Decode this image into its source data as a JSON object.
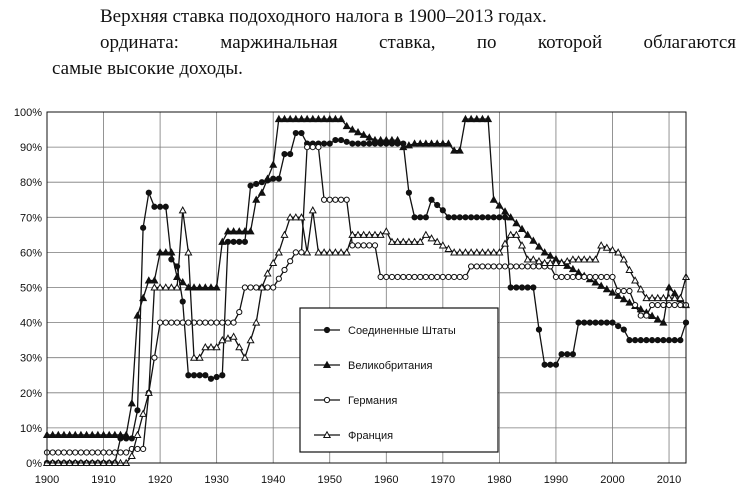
{
  "caption": {
    "line1": "Верхняя ставка подоходного налога в 1900–2013 годах.",
    "line2": "ордината: маржинальная ставка, по которой облагаются",
    "line3": "самые высокие доходы."
  },
  "colors": {
    "ink": "#111111",
    "grid": "#7a7a7a",
    "background": "#ffffff"
  },
  "chart_data": {
    "type": "line",
    "x_range": [
      1900,
      2013
    ],
    "ylim": [
      0,
      100
    ],
    "y_ticks": [
      "0%",
      "10%",
      "20%",
      "30%",
      "40%",
      "50%",
      "60%",
      "70%",
      "80%",
      "90%",
      "100%"
    ],
    "x_ticks": [
      "1900",
      "1910",
      "1920",
      "1930",
      "1940",
      "1950",
      "1960",
      "1970",
      "1980",
      "1990",
      "2000",
      "2010"
    ],
    "grid": true,
    "legend_position": "lower-center",
    "series": [
      {
        "name": "Соединенные Штаты",
        "marker": "filled-circle",
        "points": [
          [
            1900,
            0
          ],
          [
            1912,
            0
          ],
          [
            1913,
            7
          ],
          [
            1915,
            7
          ],
          [
            1916,
            15
          ],
          [
            1917,
            67
          ],
          [
            1918,
            77
          ],
          [
            1919,
            73
          ],
          [
            1921,
            73
          ],
          [
            1922,
            58
          ],
          [
            1923,
            56
          ],
          [
            1924,
            46
          ],
          [
            1925,
            25
          ],
          [
            1928,
            25
          ],
          [
            1929,
            24
          ],
          [
            1931,
            25
          ],
          [
            1932,
            63
          ],
          [
            1935,
            63
          ],
          [
            1936,
            79
          ],
          [
            1940,
            81
          ],
          [
            1941,
            81
          ],
          [
            1942,
            88
          ],
          [
            1943,
            88
          ],
          [
            1944,
            94
          ],
          [
            1945,
            94
          ],
          [
            1946,
            91
          ],
          [
            1950,
            91
          ],
          [
            1951,
            92
          ],
          [
            1952,
            92
          ],
          [
            1954,
            91
          ],
          [
            1963,
            91
          ],
          [
            1964,
            77
          ],
          [
            1965,
            70
          ],
          [
            1967,
            70
          ],
          [
            1968,
            75
          ],
          [
            1970,
            72
          ],
          [
            1971,
            70
          ],
          [
            1981,
            70
          ],
          [
            1982,
            50
          ],
          [
            1986,
            50
          ],
          [
            1987,
            38
          ],
          [
            1988,
            28
          ],
          [
            1990,
            28
          ],
          [
            1991,
            31
          ],
          [
            1993,
            31
          ],
          [
            1994,
            40
          ],
          [
            2000,
            40
          ],
          [
            2001,
            39
          ],
          [
            2002,
            38
          ],
          [
            2003,
            35
          ],
          [
            2012,
            35
          ],
          [
            2013,
            40
          ]
        ]
      },
      {
        "name": "Великобритания",
        "marker": "filled-triangle",
        "points": [
          [
            1900,
            8
          ],
          [
            1909,
            8
          ],
          [
            1910,
            8
          ],
          [
            1914,
            8
          ],
          [
            1915,
            17
          ],
          [
            1916,
            42
          ],
          [
            1918,
            52
          ],
          [
            1919,
            52
          ],
          [
            1920,
            60
          ],
          [
            1922,
            60
          ],
          [
            1923,
            53
          ],
          [
            1925,
            50
          ],
          [
            1930,
            50
          ],
          [
            1931,
            63
          ],
          [
            1932,
            66
          ],
          [
            1936,
            66
          ],
          [
            1937,
            75
          ],
          [
            1938,
            77
          ],
          [
            1940,
            85
          ],
          [
            1941,
            98
          ],
          [
            1946,
            98
          ],
          [
            1948,
            98
          ],
          [
            1952,
            98
          ],
          [
            1953,
            96
          ],
          [
            1954,
            95
          ],
          [
            1958,
            92
          ],
          [
            1962,
            92
          ],
          [
            1963,
            90
          ],
          [
            1965,
            91
          ],
          [
            1971,
            91
          ],
          [
            1972,
            89
          ],
          [
            1973,
            89
          ],
          [
            1974,
            98
          ],
          [
            1978,
            98
          ],
          [
            1979,
            75
          ],
          [
            1988,
            60
          ],
          [
            2009,
            40
          ],
          [
            2010,
            50
          ],
          [
            2013,
            45
          ]
        ]
      },
      {
        "name": "Германия",
        "marker": "open-circle",
        "points": [
          [
            1900,
            3
          ],
          [
            1914,
            3
          ],
          [
            1915,
            4
          ],
          [
            1917,
            4
          ],
          [
            1918,
            20
          ],
          [
            1919,
            30
          ],
          [
            1920,
            40
          ],
          [
            1933,
            40
          ],
          [
            1934,
            43
          ],
          [
            1935,
            50
          ],
          [
            1940,
            50
          ],
          [
            1942,
            55
          ],
          [
            1944,
            60
          ],
          [
            1945,
            60
          ],
          [
            1946,
            90
          ],
          [
            1948,
            90
          ],
          [
            1949,
            75
          ],
          [
            1953,
            75
          ],
          [
            1954,
            62
          ],
          [
            1958,
            62
          ],
          [
            1959,
            53
          ],
          [
            1974,
            53
          ],
          [
            1975,
            56
          ],
          [
            1989,
            56
          ],
          [
            1990,
            53
          ],
          [
            2000,
            53
          ],
          [
            2001,
            49
          ],
          [
            2003,
            49
          ],
          [
            2004,
            45
          ],
          [
            2005,
            42
          ],
          [
            2006,
            42
          ],
          [
            2007,
            45
          ],
          [
            2013,
            45
          ]
        ]
      },
      {
        "name": "Франция",
        "marker": "open-triangle",
        "points": [
          [
            1900,
            0
          ],
          [
            1914,
            0
          ],
          [
            1915,
            2
          ],
          [
            1918,
            20
          ],
          [
            1919,
            50
          ],
          [
            1923,
            50
          ],
          [
            1924,
            72
          ],
          [
            1925,
            60
          ],
          [
            1926,
            30
          ],
          [
            1927,
            30
          ],
          [
            1928,
            33
          ],
          [
            1929,
            33
          ],
          [
            1930,
            33
          ],
          [
            1931,
            35
          ],
          [
            1933,
            36
          ],
          [
            1935,
            30
          ],
          [
            1937,
            40
          ],
          [
            1938,
            50
          ],
          [
            1939,
            54
          ],
          [
            1941,
            60
          ],
          [
            1943,
            70
          ],
          [
            1945,
            70
          ],
          [
            1946,
            60
          ],
          [
            1947,
            72
          ],
          [
            1948,
            60
          ],
          [
            1952,
            60
          ],
          [
            1953,
            60
          ],
          [
            1954,
            65
          ],
          [
            1959,
            65
          ],
          [
            1960,
            66
          ],
          [
            1961,
            63
          ],
          [
            1966,
            63
          ],
          [
            1967,
            65
          ],
          [
            1970,
            62
          ],
          [
            1972,
            60
          ],
          [
            1980,
            60
          ],
          [
            1982,
            65
          ],
          [
            1983,
            65
          ],
          [
            1984,
            62
          ],
          [
            1985,
            58
          ],
          [
            1986,
            58
          ],
          [
            1988,
            57
          ],
          [
            1991,
            57
          ],
          [
            1993,
            58
          ],
          [
            1997,
            58
          ],
          [
            1998,
            62
          ],
          [
            2001,
            60
          ],
          [
            2002,
            58
          ],
          [
            2004,
            52
          ],
          [
            2006,
            47
          ],
          [
            2012,
            47
          ],
          [
            2013,
            53
          ]
        ]
      }
    ]
  }
}
